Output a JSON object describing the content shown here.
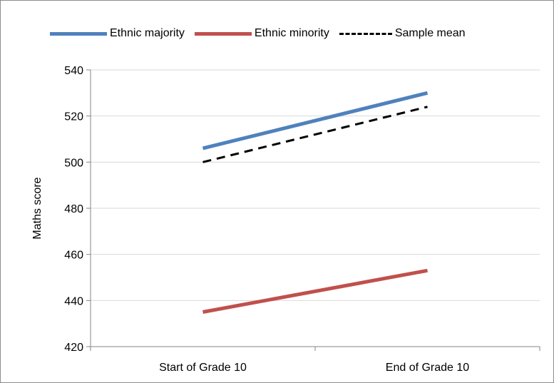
{
  "chart_data": {
    "type": "line",
    "title": "",
    "xlabel": "",
    "ylabel": "Maths score",
    "categories": [
      "Start of Grade 10",
      "End of Grade 10"
    ],
    "ylim": [
      420,
      540
    ],
    "yticks": [
      420,
      440,
      460,
      480,
      500,
      520,
      540
    ],
    "grid": true,
    "legend": "top",
    "series": [
      {
        "name": "Ethnic majority",
        "values": [
          506,
          530
        ],
        "color": "#4f81bd",
        "style": "solid"
      },
      {
        "name": "Ethnic minority",
        "values": [
          435,
          453
        ],
        "color": "#c0504d",
        "style": "solid"
      },
      {
        "name": "Sample mean",
        "values": [
          500,
          524
        ],
        "color": "#000000",
        "style": "dashed"
      }
    ]
  }
}
